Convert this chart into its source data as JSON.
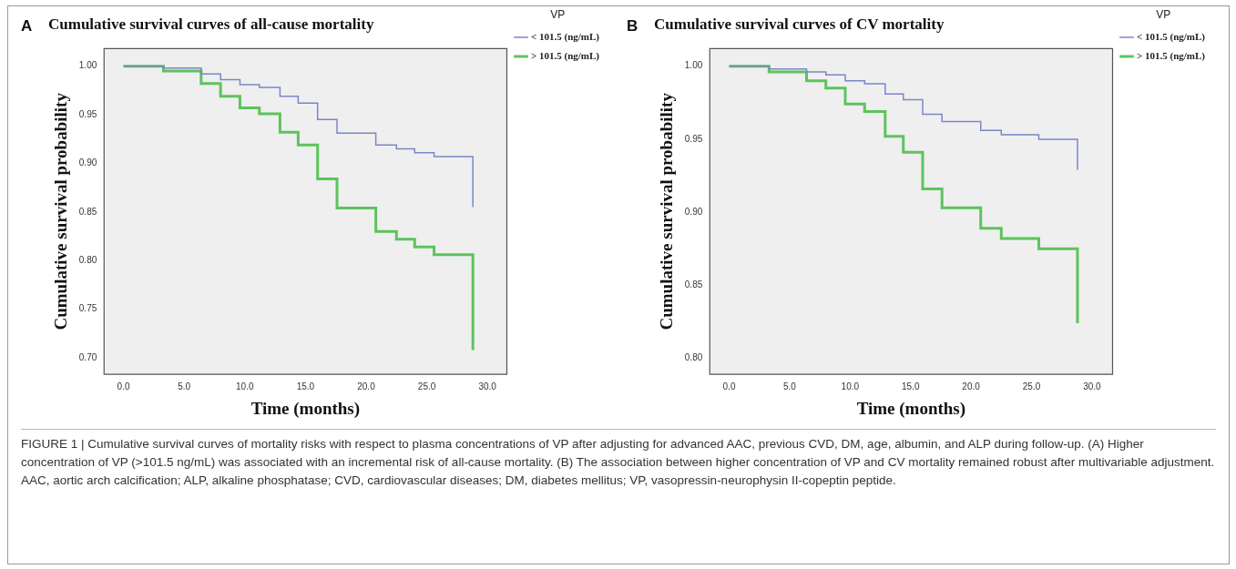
{
  "chart_data": [
    {
      "type": "step",
      "title": "Cumulative survival curves of all-cause mortality",
      "xlabel": "Time (months)",
      "ylabel": "Cumulative survival probability",
      "legend_title": "VP",
      "legend": "right",
      "xlim": [
        -1.6,
        31.6
      ],
      "xticks": [
        {
          "value": 0,
          "label": "0.0"
        },
        {
          "value": 5,
          "label": "5.0"
        },
        {
          "value": 10,
          "label": "10.0"
        },
        {
          "value": 15,
          "label": "15.0"
        },
        {
          "value": 20,
          "label": "20.0"
        },
        {
          "value": 25,
          "label": "25.0"
        },
        {
          "value": 30,
          "label": "30.0"
        }
      ],
      "ylim": [
        0.683,
        1.018
      ],
      "yticks": [
        {
          "value": 0.7,
          "label": "0.70"
        },
        {
          "value": 0.75,
          "label": "0.75"
        },
        {
          "value": 0.8,
          "label": "0.80"
        },
        {
          "value": 0.85,
          "label": "0.85"
        },
        {
          "value": 0.9,
          "label": "0.90"
        },
        {
          "value": 0.95,
          "label": "0.95"
        },
        {
          "value": 1,
          "label": "1.00"
        }
      ],
      "x": [
        0,
        3.3,
        6.4,
        8.0,
        9.6,
        11.2,
        12.9,
        14.4,
        16.0,
        17.6,
        20.8,
        22.5,
        24.0,
        25.6,
        28.8
      ],
      "series": [
        {
          "name": "< 101.5 (ng/mL)",
          "color": "#7b86c8",
          "values": [
            1.0,
            0.998,
            0.992,
            0.986,
            0.981,
            0.978,
            0.969,
            0.962,
            0.945,
            0.931,
            0.919,
            0.915,
            0.911,
            0.907,
            0.855
          ]
        },
        {
          "name": "> 101.5 (ng/mL)",
          "color": "#5cc45c",
          "values": [
            1.0,
            0.995,
            0.982,
            0.969,
            0.957,
            0.951,
            0.932,
            0.919,
            0.884,
            0.854,
            0.83,
            0.822,
            0.814,
            0.806,
            0.708
          ]
        }
      ],
      "annotations": [
        "A",
        "FIGURE 1 | Cumulative survival curves of mortality risks with respect to plasma concentrations of VP after adjusting for advanced AAC, previous CVD, DM, age, albumin, and ALP during follow-up. (A) Higher concentration of VP (>101.5 ng/mL) was associated with an incremental risk of all-cause mortality. (B) The association between higher concentration of VP and CV mortality remained robust after multivariable adjustment. AAC, aortic arch calcification; ALP, alkaline phosphatase; CVD, cardiovascular diseases; DM, diabetes mellitus; VP, vasopressin-neurophysin II-copeptin peptide."
      ]
    },
    {
      "type": "step",
      "title": "Cumulative survival curves of CV mortality",
      "xlabel": "Time (months)",
      "ylabel": "Cumulative survival probability",
      "legend_title": "VP",
      "legend": "right",
      "xlim": [
        -1.6,
        31.7
      ],
      "xticks": [
        {
          "value": 0,
          "label": "0.0"
        },
        {
          "value": 5,
          "label": "5.0"
        },
        {
          "value": 10,
          "label": "10.0"
        },
        {
          "value": 15,
          "label": "15.0"
        },
        {
          "value": 20,
          "label": "20.0"
        },
        {
          "value": 25,
          "label": "25.0"
        },
        {
          "value": 30,
          "label": "30.0"
        }
      ],
      "ylim": [
        0.789,
        1.012
      ],
      "yticks": [
        {
          "value": 0.8,
          "label": "0.80"
        },
        {
          "value": 0.85,
          "label": "0.85"
        },
        {
          "value": 0.9,
          "label": "0.90"
        },
        {
          "value": 0.95,
          "label": "0.95"
        },
        {
          "value": 1,
          "label": "1.00"
        }
      ],
      "x": [
        0,
        3.3,
        6.4,
        8.0,
        9.6,
        11.2,
        12.9,
        14.4,
        16.0,
        17.6,
        20.8,
        22.5,
        25.6,
        28.8
      ],
      "series": [
        {
          "name": "< 101.5 (ng/mL)",
          "color": "#7b86c8",
          "values": [
            1.0,
            0.998,
            0.996,
            0.994,
            0.99,
            0.988,
            0.981,
            0.977,
            0.967,
            0.962,
            0.956,
            0.953,
            0.95,
            0.929
          ]
        },
        {
          "name": "> 101.5 (ng/mL)",
          "color": "#5cc45c",
          "values": [
            1.0,
            0.996,
            0.99,
            0.985,
            0.974,
            0.969,
            0.952,
            0.941,
            0.916,
            0.903,
            0.889,
            0.882,
            0.875,
            0.824
          ]
        }
      ],
      "annotations": [
        "B"
      ]
    }
  ]
}
